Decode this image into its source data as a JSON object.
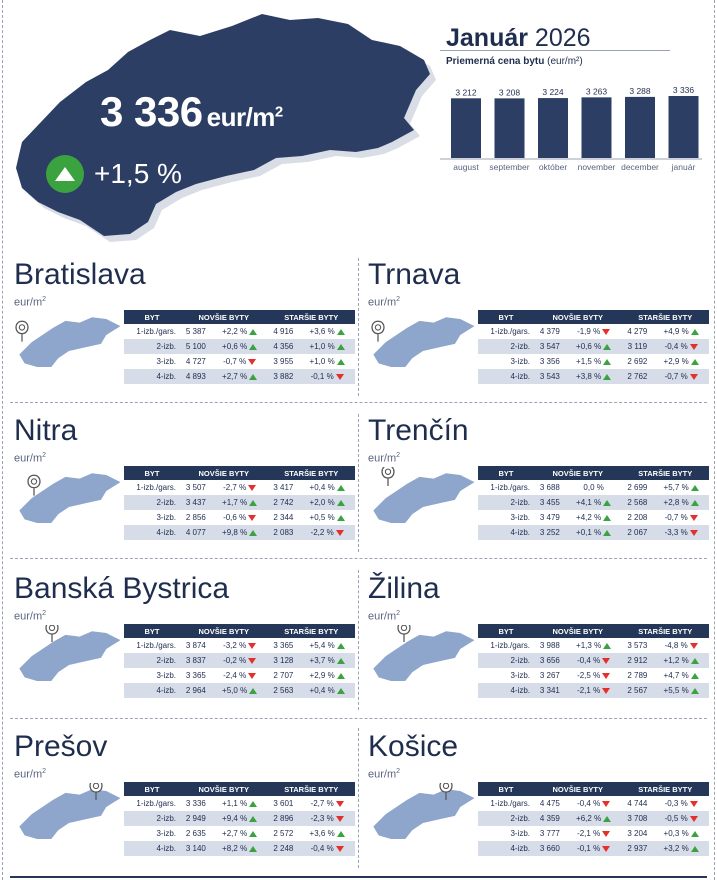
{
  "summary": {
    "price": "3 336",
    "unit": "eur/m",
    "unit_sup": "2",
    "change": "+1,5 %",
    "change_icon": "arrow-up-icon",
    "colors": {
      "navy": "#2d3e64",
      "up": "#3aa33f",
      "down": "#e4302a"
    }
  },
  "chart": {
    "title_bold": "Január",
    "title_year": " 2026",
    "subtitle_bold": "Priemerná cena bytu",
    "subtitle_unit": " (eur/m²)"
  },
  "chart_data": {
    "type": "bar",
    "categories": [
      "august",
      "september",
      "október",
      "november",
      "december",
      "január"
    ],
    "values": [
      3212,
      3208,
      3224,
      3263,
      3288,
      3336
    ],
    "value_labels": [
      "3 212",
      "3 208",
      "3 224",
      "3 263",
      "3 288",
      "3 336"
    ],
    "title": "Január 2026",
    "subtitle": "Priemerná cena bytu (eur/m²)",
    "ylim": [
      0,
      3336
    ],
    "grid": false,
    "color": "#2d3e64"
  },
  "table_headers": {
    "byt": "BYT",
    "new": "NOVŠIE BYTY",
    "old": "STARŠIE BYTY"
  },
  "regions": [
    {
      "name": "Bratislava",
      "unit": "eur/m",
      "pin_icon": "location-pin-icon",
      "rows": [
        {
          "label": "1-izb./gars.",
          "new_price": "5 387",
          "new_change": "+2,2 %",
          "new_dir": "up",
          "old_price": "4 916",
          "old_change": "+3,6 %",
          "old_dir": "up"
        },
        {
          "label": "2-izb.",
          "new_price": "5 100",
          "new_change": "+0,6 %",
          "new_dir": "up",
          "old_price": "4 356",
          "old_change": "+1,0 %",
          "old_dir": "up"
        },
        {
          "label": "3-izb.",
          "new_price": "4 727",
          "new_change": "-0,7 %",
          "new_dir": "down",
          "old_price": "3 955",
          "old_change": "+1,0 %",
          "old_dir": "up"
        },
        {
          "label": "4-izb.",
          "new_price": "4 893",
          "new_change": "+2,7 %",
          "new_dir": "up",
          "old_price": "3 882",
          "old_change": "-0,1 %",
          "old_dir": "down"
        }
      ]
    },
    {
      "name": "Trnava",
      "unit": "eur/m",
      "pin_icon": "location-pin-icon",
      "rows": [
        {
          "label": "1-izb./gars.",
          "new_price": "4 379",
          "new_change": "-1,9 %",
          "new_dir": "down",
          "old_price": "4 279",
          "old_change": "+4,9 %",
          "old_dir": "up"
        },
        {
          "label": "2-izb.",
          "new_price": "3 547",
          "new_change": "+0,6 %",
          "new_dir": "up",
          "old_price": "3 119",
          "old_change": "-0,4 %",
          "old_dir": "down"
        },
        {
          "label": "3-izb.",
          "new_price": "3 356",
          "new_change": "+1,5 %",
          "new_dir": "up",
          "old_price": "2 692",
          "old_change": "+2,9 %",
          "old_dir": "up"
        },
        {
          "label": "4-izb.",
          "new_price": "3 543",
          "new_change": "+3,8 %",
          "new_dir": "up",
          "old_price": "2 762",
          "old_change": "-0,7 %",
          "old_dir": "down"
        }
      ]
    },
    {
      "name": "Nitra",
      "unit": "eur/m",
      "pin_icon": "location-pin-icon",
      "rows": [
        {
          "label": "1-izb./gars.",
          "new_price": "3 507",
          "new_change": "-2,7 %",
          "new_dir": "down",
          "old_price": "3 417",
          "old_change": "+0,4 %",
          "old_dir": "up"
        },
        {
          "label": "2-izb.",
          "new_price": "3 437",
          "new_change": "+1,7 %",
          "new_dir": "up",
          "old_price": "2 742",
          "old_change": "+2,0 %",
          "old_dir": "up"
        },
        {
          "label": "3-izb.",
          "new_price": "2 856",
          "new_change": "-0,6 %",
          "new_dir": "down",
          "old_price": "2 344",
          "old_change": "+0,5 %",
          "old_dir": "up"
        },
        {
          "label": "4-izb.",
          "new_price": "4 077",
          "new_change": "+9,8 %",
          "new_dir": "up",
          "old_price": "2 083",
          "old_change": "-2,2 %",
          "old_dir": "down"
        }
      ]
    },
    {
      "name": "Trenčín",
      "unit": "eur/m",
      "pin_icon": "location-pin-icon",
      "rows": [
        {
          "label": "1-izb./gars.",
          "new_price": "3 688",
          "new_change": "0,0 %",
          "new_dir": "none",
          "old_price": "2 699",
          "old_change": "+5,7 %",
          "old_dir": "up"
        },
        {
          "label": "2-izb.",
          "new_price": "3 455",
          "new_change": "+4,1 %",
          "new_dir": "up",
          "old_price": "2 568",
          "old_change": "+2,8 %",
          "old_dir": "up"
        },
        {
          "label": "3-izb.",
          "new_price": "3 479",
          "new_change": "+4,2 %",
          "new_dir": "up",
          "old_price": "2 208",
          "old_change": "-0,7 %",
          "old_dir": "down"
        },
        {
          "label": "4-izb.",
          "new_price": "3 252",
          "new_change": "+0,1 %",
          "new_dir": "up",
          "old_price": "2 067",
          "old_change": "-3,3 %",
          "old_dir": "down"
        }
      ]
    },
    {
      "name": "Banská Bystrica",
      "unit": "eur/m",
      "pin_icon": "location-pin-icon",
      "rows": [
        {
          "label": "1-izb./gars.",
          "new_price": "3 874",
          "new_change": "-3,2 %",
          "new_dir": "down",
          "old_price": "3 365",
          "old_change": "+5,4 %",
          "old_dir": "up"
        },
        {
          "label": "2-izb.",
          "new_price": "3 837",
          "new_change": "-0,2 %",
          "new_dir": "down",
          "old_price": "3 128",
          "old_change": "+3,7 %",
          "old_dir": "up"
        },
        {
          "label": "3-izb.",
          "new_price": "3 365",
          "new_change": "-2,4 %",
          "new_dir": "down",
          "old_price": "2 707",
          "old_change": "+2,9 %",
          "old_dir": "up"
        },
        {
          "label": "4-izb.",
          "new_price": "2 964",
          "new_change": "+5,0 %",
          "new_dir": "up",
          "old_price": "2 563",
          "old_change": "+0,4 %",
          "old_dir": "up"
        }
      ]
    },
    {
      "name": "Žilina",
      "unit": "eur/m",
      "pin_icon": "location-pin-icon",
      "rows": [
        {
          "label": "1-izb./gars.",
          "new_price": "3 988",
          "new_change": "+1,3 %",
          "new_dir": "up",
          "old_price": "3 573",
          "old_change": "-4,8 %",
          "old_dir": "down"
        },
        {
          "label": "2-izb.",
          "new_price": "3 656",
          "new_change": "-0,4 %",
          "new_dir": "down",
          "old_price": "2 912",
          "old_change": "+1,2 %",
          "old_dir": "up"
        },
        {
          "label": "3-izb.",
          "new_price": "3 267",
          "new_change": "-2,5 %",
          "new_dir": "down",
          "old_price": "2 789",
          "old_change": "+4,7 %",
          "old_dir": "up"
        },
        {
          "label": "4-izb.",
          "new_price": "3 341",
          "new_change": "-2,1 %",
          "new_dir": "down",
          "old_price": "2 567",
          "old_change": "+5,5 %",
          "old_dir": "up"
        }
      ]
    },
    {
      "name": "Prešov",
      "unit": "eur/m",
      "pin_icon": "location-pin-icon",
      "rows": [
        {
          "label": "1-izb./gars.",
          "new_price": "3 336",
          "new_change": "+1,1 %",
          "new_dir": "up",
          "old_price": "3 601",
          "old_change": "-2,7 %",
          "old_dir": "down"
        },
        {
          "label": "2-izb.",
          "new_price": "2 949",
          "new_change": "+9,4 %",
          "new_dir": "up",
          "old_price": "2 896",
          "old_change": "-2,3 %",
          "old_dir": "down"
        },
        {
          "label": "3-izb.",
          "new_price": "2 635",
          "new_change": "+2,7 %",
          "new_dir": "up",
          "old_price": "2 572",
          "old_change": "+3,6 %",
          "old_dir": "up"
        },
        {
          "label": "4-izb.",
          "new_price": "3 140",
          "new_change": "+8,2 %",
          "new_dir": "up",
          "old_price": "2 248",
          "old_change": "-0,4 %",
          "old_dir": "down"
        }
      ]
    },
    {
      "name": "Košice",
      "unit": "eur/m",
      "pin_icon": "location-pin-icon",
      "rows": [
        {
          "label": "1-izb./gars.",
          "new_price": "4 475",
          "new_change": "-0,4 %",
          "new_dir": "down",
          "old_price": "4 744",
          "old_change": "-0,3 %",
          "old_dir": "down"
        },
        {
          "label": "2-izb.",
          "new_price": "4 359",
          "new_change": "+6,2 %",
          "new_dir": "up",
          "old_price": "3 708",
          "old_change": "-0,5 %",
          "old_dir": "down"
        },
        {
          "label": "3-izb.",
          "new_price": "3 777",
          "new_change": "-2,1 %",
          "new_dir": "down",
          "old_price": "3 204",
          "old_change": "+0,3 %",
          "old_dir": "up"
        },
        {
          "label": "4-izb.",
          "new_price": "3 660",
          "new_change": "-0,1 %",
          "new_dir": "down",
          "old_price": "2 937",
          "old_change": "+3,2 %",
          "old_dir": "up"
        }
      ]
    }
  ]
}
